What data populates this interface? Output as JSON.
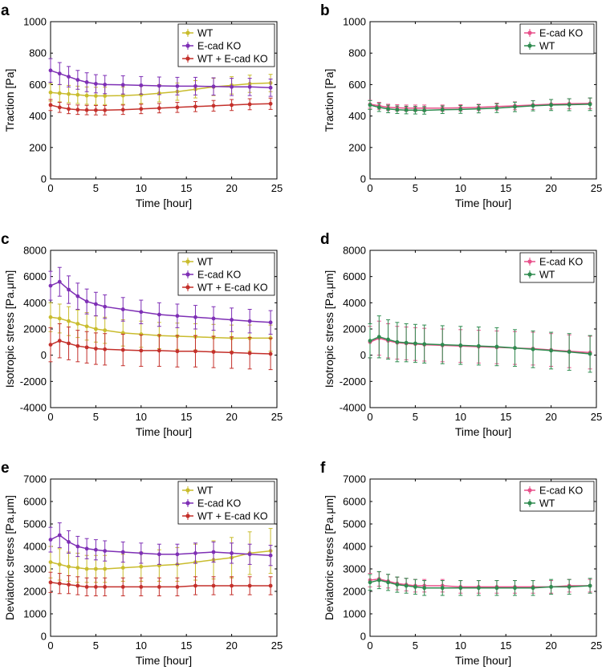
{
  "figure": {
    "colors": {
      "wt_mix": "#C9BC2D",
      "ecad_mix": "#7E2FB5",
      "wtecad_mix": "#C4302B",
      "ecad_pure": "#E8508A",
      "wt_pure": "#2E8B4F",
      "axis": "#000000"
    }
  },
  "chart_data": [
    {
      "panel": "a",
      "type": "line",
      "xlabel": "Time [hour]",
      "ylabel": "Traction [Pa]",
      "xlim": [
        0,
        25
      ],
      "ylim": [
        0,
        1000
      ],
      "xticks": [
        "0",
        "5",
        "10",
        "15",
        "20",
        "25"
      ],
      "yticks": [
        "0",
        "200",
        "400",
        "600",
        "800",
        "1000"
      ],
      "legend_position": "top-right",
      "series": [
        {
          "name": "WT",
          "color_key": "wt_mix",
          "x": [
            0,
            1,
            2,
            3,
            4,
            5,
            6,
            8,
            10,
            12,
            14,
            16,
            18,
            20,
            22,
            24.3
          ],
          "y": [
            550,
            545,
            540,
            535,
            530,
            528,
            528,
            530,
            535,
            545,
            555,
            570,
            585,
            595,
            605,
            610
          ],
          "err": [
            55,
            55,
            55,
            55,
            55,
            55,
            55,
            55,
            55,
            55,
            55,
            55,
            55,
            55,
            55,
            55
          ]
        },
        {
          "name": "E-cad KO",
          "color_key": "ecad_mix",
          "x": [
            0,
            1,
            2,
            3,
            4,
            5,
            6,
            8,
            10,
            12,
            14,
            16,
            18,
            20,
            22,
            24.3
          ],
          "y": [
            690,
            670,
            650,
            630,
            615,
            605,
            600,
            598,
            595,
            592,
            590,
            590,
            588,
            585,
            585,
            580
          ],
          "err": [
            75,
            70,
            65,
            60,
            60,
            58,
            58,
            58,
            56,
            56,
            56,
            56,
            55,
            55,
            55,
            55
          ]
        },
        {
          "name": "WT + E-cad KO",
          "color_key": "wtecad_mix",
          "x": [
            0,
            1,
            2,
            3,
            4,
            5,
            6,
            8,
            10,
            12,
            14,
            16,
            18,
            20,
            22,
            24.3
          ],
          "y": [
            470,
            455,
            445,
            440,
            438,
            437,
            437,
            440,
            445,
            450,
            455,
            460,
            465,
            470,
            475,
            478
          ],
          "err": [
            35,
            32,
            30,
            30,
            30,
            30,
            30,
            30,
            30,
            30,
            32,
            32,
            34,
            35,
            35,
            36
          ]
        }
      ]
    },
    {
      "panel": "b",
      "type": "line",
      "xlabel": "Time [hour]",
      "ylabel": "Traction [Pa]",
      "xlim": [
        0,
        25
      ],
      "ylim": [
        0,
        1000
      ],
      "xticks": [
        "0",
        "5",
        "10",
        "15",
        "20",
        "25"
      ],
      "yticks": [
        "0",
        "200",
        "400",
        "600",
        "800",
        "1000"
      ],
      "legend_position": "top-right",
      "series": [
        {
          "name": "E-cad KO",
          "color_key": "ecad_pure",
          "x": [
            0,
            1,
            2,
            3,
            4,
            5,
            6,
            8,
            10,
            12,
            14,
            16,
            18,
            20,
            22,
            24.3
          ],
          "y": [
            475,
            465,
            455,
            452,
            450,
            450,
            450,
            450,
            452,
            455,
            460,
            465,
            470,
            475,
            478,
            480
          ],
          "err": [
            25,
            22,
            20,
            20,
            20,
            20,
            20,
            20,
            20,
            20,
            22,
            25,
            28,
            30,
            32,
            34
          ]
        },
        {
          "name": "WT",
          "color_key": "wt_pure",
          "x": [
            0,
            1,
            2,
            3,
            4,
            5,
            6,
            8,
            10,
            12,
            14,
            16,
            18,
            20,
            22,
            24.3
          ],
          "y": [
            470,
            455,
            445,
            440,
            438,
            437,
            436,
            440,
            442,
            446,
            450,
            458,
            465,
            470,
            472,
            475
          ],
          "err": [
            28,
            26,
            24,
            24,
            24,
            24,
            24,
            24,
            25,
            26,
            28,
            30,
            32,
            35,
            38,
            40
          ]
        }
      ]
    },
    {
      "panel": "c",
      "type": "line",
      "xlabel": "Time [hour]",
      "ylabel": "Isotropic stress [Pa.μm]",
      "xlim": [
        0,
        25
      ],
      "ylim": [
        -4000,
        8000
      ],
      "xticks": [
        "0",
        "5",
        "10",
        "15",
        "20",
        "25"
      ],
      "yticks": [
        "-4000",
        "-2000",
        "0",
        "2000",
        "4000",
        "6000",
        "8000"
      ],
      "legend_position": "top-right",
      "series": [
        {
          "name": "WT",
          "color_key": "wt_mix",
          "x": [
            0,
            1,
            2,
            3,
            4,
            5,
            6,
            8,
            10,
            12,
            14,
            16,
            18,
            20,
            22,
            24.3
          ],
          "y": [
            2900,
            2800,
            2600,
            2400,
            2200,
            2000,
            1900,
            1700,
            1600,
            1500,
            1450,
            1400,
            1350,
            1300,
            1300,
            1300
          ],
          "err": [
            1100,
            1100,
            1100,
            1050,
            1050,
            1000,
            1000,
            1000,
            1000,
            1000,
            1000,
            1000,
            1000,
            1000,
            1000,
            1000
          ]
        },
        {
          "name": "E-cad KO",
          "color_key": "ecad_mix",
          "x": [
            0,
            1,
            2,
            3,
            4,
            5,
            6,
            8,
            10,
            12,
            14,
            16,
            18,
            20,
            22,
            24.3
          ],
          "y": [
            5300,
            5600,
            5000,
            4500,
            4100,
            3900,
            3700,
            3500,
            3300,
            3100,
            3000,
            2900,
            2800,
            2700,
            2600,
            2500
          ],
          "err": [
            1100,
            1100,
            1050,
            1000,
            950,
            900,
            900,
            900,
            900,
            900,
            900,
            900,
            900,
            900,
            900,
            900
          ]
        },
        {
          "name": "WT + E-cad KO",
          "color_key": "wtecad_mix",
          "x": [
            0,
            1,
            2,
            3,
            4,
            5,
            6,
            8,
            10,
            12,
            14,
            16,
            18,
            20,
            22,
            24.3
          ],
          "y": [
            800,
            1100,
            900,
            700,
            600,
            500,
            450,
            400,
            350,
            350,
            300,
            300,
            250,
            200,
            150,
            100
          ],
          "err": [
            1300,
            1300,
            1250,
            1200,
            1200,
            1200,
            1200,
            1200,
            1200,
            1200,
            1200,
            1200,
            1200,
            1200,
            1200,
            1200
          ]
        }
      ]
    },
    {
      "panel": "d",
      "type": "line",
      "xlabel": "Time [hour]",
      "ylabel": "Isotropic stress [Pa.μm]",
      "xlim": [
        0,
        25
      ],
      "ylim": [
        -4000,
        8000
      ],
      "xticks": [
        "0",
        "5",
        "10",
        "15",
        "20",
        "25"
      ],
      "yticks": [
        "-4000",
        "-2000",
        "0",
        "2000",
        "4000",
        "6000",
        "8000"
      ],
      "legend_position": "top-right",
      "series": [
        {
          "name": "E-cad KO",
          "color_key": "ecad_pure",
          "x": [
            0,
            1,
            2,
            3,
            4,
            5,
            6,
            8,
            10,
            12,
            14,
            16,
            18,
            20,
            22,
            24.3
          ],
          "y": [
            1000,
            1300,
            1100,
            950,
            900,
            850,
            800,
            750,
            700,
            650,
            600,
            550,
            500,
            400,
            300,
            200
          ],
          "err": [
            1200,
            1300,
            1300,
            1250,
            1250,
            1250,
            1250,
            1250,
            1250,
            1250,
            1250,
            1250,
            1250,
            1250,
            1250,
            1250
          ]
        },
        {
          "name": "WT",
          "color_key": "wt_pure",
          "x": [
            0,
            1,
            2,
            3,
            4,
            5,
            6,
            8,
            10,
            12,
            14,
            16,
            18,
            20,
            22,
            24.3
          ],
          "y": [
            1100,
            1400,
            1200,
            1000,
            950,
            900,
            850,
            800,
            750,
            700,
            650,
            550,
            450,
            350,
            250,
            100
          ],
          "err": [
            1300,
            1600,
            1500,
            1500,
            1450,
            1450,
            1450,
            1450,
            1450,
            1450,
            1450,
            1400,
            1400,
            1400,
            1400,
            1400
          ]
        }
      ]
    },
    {
      "panel": "e",
      "type": "line",
      "xlabel": "Time [hour]",
      "ylabel": "Deviatoric stress [Pa.μm]",
      "xlim": [
        0,
        25
      ],
      "ylim": [
        0,
        7000
      ],
      "xticks": [
        "0",
        "5",
        "10",
        "15",
        "20",
        "25"
      ],
      "yticks": [
        "0",
        "1000",
        "2000",
        "3000",
        "4000",
        "5000",
        "6000",
        "7000"
      ],
      "legend_position": "top-right",
      "series": [
        {
          "name": "WT",
          "color_key": "wt_mix",
          "x": [
            0,
            1,
            2,
            3,
            4,
            5,
            6,
            8,
            10,
            12,
            14,
            16,
            18,
            20,
            22,
            24.3
          ],
          "y": [
            3300,
            3200,
            3100,
            3050,
            3000,
            3000,
            3000,
            3050,
            3100,
            3150,
            3200,
            3300,
            3400,
            3500,
            3700,
            3800
          ],
          "err": [
            700,
            700,
            650,
            650,
            600,
            600,
            600,
            600,
            650,
            700,
            750,
            800,
            850,
            900,
            950,
            1000
          ]
        },
        {
          "name": "E-cad KO",
          "color_key": "ecad_mix",
          "x": [
            0,
            1,
            2,
            3,
            4,
            5,
            6,
            8,
            10,
            12,
            14,
            16,
            18,
            20,
            22,
            24.3
          ],
          "y": [
            4300,
            4500,
            4200,
            4000,
            3900,
            3850,
            3800,
            3750,
            3700,
            3650,
            3650,
            3700,
            3750,
            3700,
            3650,
            3600
          ],
          "err": [
            550,
            550,
            500,
            450,
            450,
            450,
            450,
            450,
            450,
            450,
            450,
            450,
            450,
            450,
            450,
            450
          ]
        },
        {
          "name": "WT + E-cad KO",
          "color_key": "wtecad_mix",
          "x": [
            0,
            1,
            2,
            3,
            4,
            5,
            6,
            8,
            10,
            12,
            14,
            16,
            18,
            20,
            22,
            24.3
          ],
          "y": [
            2400,
            2350,
            2300,
            2250,
            2200,
            2200,
            2200,
            2200,
            2200,
            2200,
            2200,
            2250,
            2250,
            2250,
            2250,
            2250
          ],
          "err": [
            450,
            450,
            400,
            400,
            400,
            400,
            400,
            400,
            400,
            400,
            400,
            400,
            400,
            400,
            400,
            400
          ]
        }
      ]
    },
    {
      "panel": "f",
      "type": "line",
      "xlabel": "Time [hour]",
      "ylabel": "Deviatoric stress [Pa.μm]",
      "xlim": [
        0,
        25
      ],
      "ylim": [
        0,
        7000
      ],
      "xticks": [
        "0",
        "5",
        "10",
        "15",
        "20",
        "25"
      ],
      "yticks": [
        "0",
        "1000",
        "2000",
        "3000",
        "4000",
        "5000",
        "6000",
        "7000"
      ],
      "legend_position": "top-right",
      "series": [
        {
          "name": "E-cad KO",
          "color_key": "ecad_pure",
          "x": [
            0,
            1,
            2,
            3,
            4,
            5,
            6,
            8,
            10,
            12,
            14,
            16,
            18,
            20,
            22,
            24.3
          ],
          "y": [
            2500,
            2550,
            2450,
            2350,
            2300,
            2250,
            2250,
            2250,
            2200,
            2200,
            2200,
            2200,
            2200,
            2200,
            2250,
            2250
          ],
          "err": [
            300,
            320,
            300,
            280,
            280,
            280,
            280,
            280,
            280,
            280,
            280,
            280,
            280,
            280,
            280,
            280
          ]
        },
        {
          "name": "WT",
          "color_key": "wt_pure",
          "x": [
            0,
            1,
            2,
            3,
            4,
            5,
            6,
            8,
            10,
            12,
            14,
            16,
            18,
            20,
            22,
            24.3
          ],
          "y": [
            2400,
            2500,
            2400,
            2300,
            2250,
            2200,
            2150,
            2150,
            2150,
            2150,
            2150,
            2150,
            2150,
            2200,
            2200,
            2250
          ],
          "err": [
            350,
            380,
            360,
            340,
            330,
            330,
            330,
            330,
            330,
            330,
            330,
            330,
            330,
            330,
            330,
            330
          ]
        }
      ]
    }
  ]
}
